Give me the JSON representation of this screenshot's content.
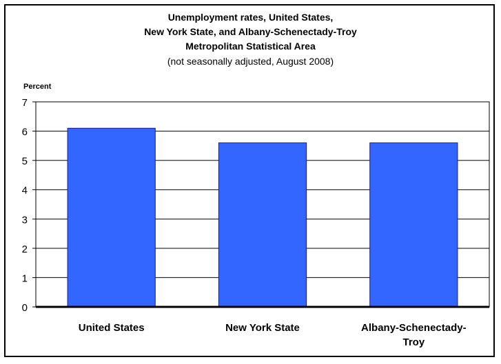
{
  "chart_data": {
    "type": "bar",
    "title_lines": [
      "Unemployment rates, United States,",
      "New York State, and Albany-Schenectady-Troy",
      "Metropolitan Statistical Area"
    ],
    "subtitle": "(not seasonally adjusted, August 2008)",
    "ylabel": "Percent",
    "xlabel": "",
    "ylim": [
      0,
      7
    ],
    "yticks": [
      "0",
      "1",
      "2",
      "3",
      "4",
      "5",
      "6",
      "7"
    ],
    "categories": [
      "United States",
      "New York State",
      "Albany-Schenectady-Troy"
    ],
    "category_label_lines": [
      [
        "United States"
      ],
      [
        "New York State"
      ],
      [
        "Albany-Schenectady-",
        "Troy"
      ]
    ],
    "values": [
      6.1,
      5.6,
      5.6
    ],
    "grid": true,
    "bar_color": "#3366ff",
    "bar_edge_color": "#1a1a8c"
  }
}
